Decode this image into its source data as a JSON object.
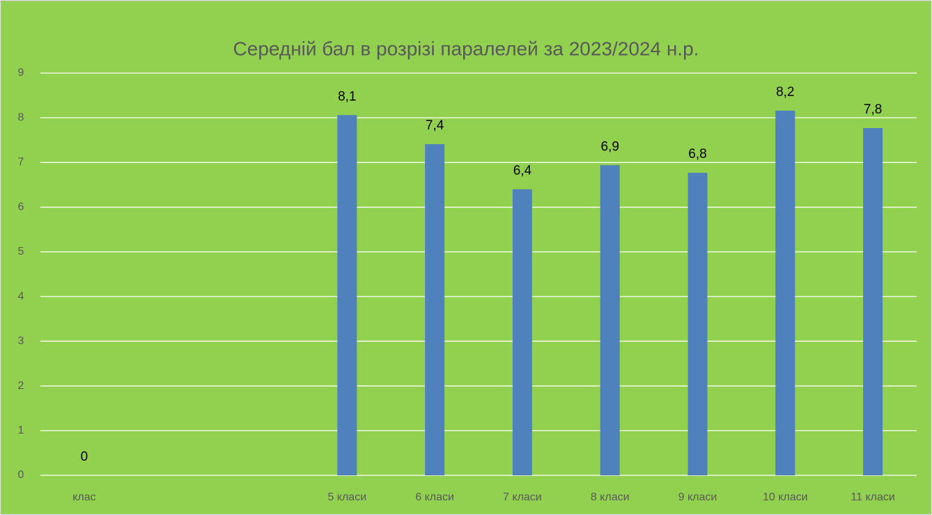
{
  "chart_data": {
    "type": "bar",
    "title": "Середній бал в розрізі паралелей за 2023/2024 н.р.",
    "categories": [
      "клас",
      null,
      null,
      "5 класи",
      "6 класи",
      "7 класи",
      "8 класи",
      "9 класи",
      "10 класи",
      "11 класи"
    ],
    "values": [
      0,
      null,
      null,
      8.06,
      7.41,
      6.4,
      6.94,
      6.77,
      8.16,
      7.77
    ],
    "value_labels": [
      "0",
      null,
      null,
      "8,1",
      "7,4",
      "6,4",
      "6,9",
      "6,8",
      "8,2",
      "7,8"
    ],
    "color": "#4f81bd",
    "ylim": [
      0,
      9
    ],
    "yticks": [
      0,
      1,
      2,
      3,
      4,
      5,
      6,
      7,
      8,
      9
    ],
    "grid": true
  }
}
